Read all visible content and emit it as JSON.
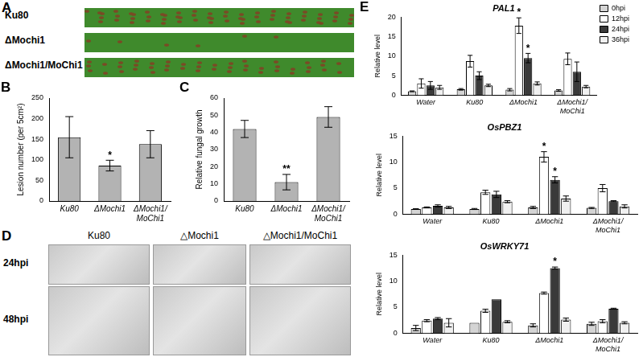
{
  "panel_A": {
    "panel": "A",
    "leaves": [
      "Ku80",
      "ΔMochi1",
      "ΔMochi1/MoChi1"
    ]
  },
  "chart_data": [
    {
      "panel": "B",
      "type": "bar",
      "y_label": "Lesion number (per 5cm²)",
      "categories": [
        "Ku80",
        "ΔMochi1",
        "ΔMochi1/MoChi1"
      ],
      "values": [
        155,
        86,
        138
      ],
      "errors": [
        50,
        13,
        33
      ],
      "significance": [
        null,
        "*",
        null
      ],
      "color": "#b3b3b3",
      "ylim": [
        0,
        250
      ],
      "yticks": [
        0,
        50,
        100,
        150,
        200,
        250
      ],
      "grid": false
    },
    {
      "panel": "C",
      "type": "bar",
      "y_label": "Relative fungal growth",
      "categories": [
        "Ku80",
        "ΔMochi1",
        "ΔMochi1/MoChi1"
      ],
      "values": [
        42,
        11,
        49
      ],
      "errors": [
        5,
        4.5,
        6
      ],
      "significance": [
        null,
        "**",
        null
      ],
      "color": "#b3b3b3",
      "ylim": [
        0,
        60
      ],
      "yticks": [
        0,
        10,
        20,
        30,
        40,
        50,
        60
      ],
      "grid": false
    },
    {
      "panel": "E",
      "type": "bar",
      "title": "PAL1",
      "y_label": "Relative level",
      "categories": [
        "Water",
        "Ku80",
        "ΔMochi1",
        "ΔMochi1/MoChi1"
      ],
      "series": [
        {
          "name": "0hpi",
          "color": "#d4d4d4",
          "values": [
            1,
            1.5,
            1.4,
            1.2
          ],
          "errors": [
            0.1,
            0.2,
            0.3,
            0.2
          ],
          "significance": [
            null,
            null,
            null,
            null
          ]
        },
        {
          "name": "12hpi",
          "color": "#ffffff",
          "values": [
            3,
            8.7,
            17.8,
            9.3
          ],
          "errors": [
            1.2,
            1.5,
            2,
            1.5
          ],
          "significance": [
            null,
            null,
            "*",
            null
          ]
        },
        {
          "name": "24hpi",
          "color": "#3a3a3a",
          "values": [
            2.5,
            5,
            9.5,
            6
          ],
          "errors": [
            1,
            1,
            1.2,
            2.5
          ],
          "significance": [
            null,
            null,
            "*",
            null
          ]
        },
        {
          "name": "36hpi",
          "color": "#f0f0f0",
          "values": [
            2,
            2.5,
            3,
            2.2
          ],
          "errors": [
            0.5,
            0.3,
            0.4,
            0.3
          ],
          "significance": [
            null,
            null,
            null,
            null
          ]
        }
      ],
      "ylim": [
        0,
        20
      ],
      "yticks": [
        0,
        5,
        10,
        15,
        20
      ],
      "grid": false,
      "legend": "upper right"
    },
    {
      "type": "bar",
      "title": "OsPBZ1",
      "y_label": "Relative level",
      "categories": [
        "Water",
        "Ku80",
        "ΔMochi1",
        "ΔMochi1/MoChi1"
      ],
      "series": [
        {
          "name": "0hpi",
          "color": "#d4d4d4",
          "values": [
            1,
            1,
            1.3,
            1.2
          ],
          "errors": [
            0.05,
            0.1,
            0.2,
            0.1
          ],
          "significance": [
            null,
            null,
            null,
            null
          ]
        },
        {
          "name": "12hpi",
          "color": "#ffffff",
          "values": [
            1.3,
            4.2,
            11,
            5
          ],
          "errors": [
            0.1,
            0.4,
            1,
            0.7
          ],
          "significance": [
            null,
            null,
            "*",
            null
          ]
        },
        {
          "name": "24hpi",
          "color": "#3a3a3a",
          "values": [
            1.6,
            3.8,
            6.6,
            2.5
          ],
          "errors": [
            0.2,
            0.6,
            0.6,
            0.1
          ],
          "significance": [
            null,
            null,
            "*",
            null
          ]
        },
        {
          "name": "36hpi",
          "color": "#f0f0f0",
          "values": [
            1.3,
            2.4,
            3,
            1.5
          ],
          "errors": [
            0.2,
            0.2,
            0.5,
            0.3
          ],
          "significance": [
            null,
            null,
            null,
            null
          ]
        }
      ],
      "ylim": [
        0,
        15
      ],
      "yticks": [
        0,
        5,
        10,
        15
      ],
      "grid": false
    },
    {
      "type": "bar",
      "title": "OsWRKY71",
      "y_label": "Relative level",
      "categories": [
        "Water",
        "Ku80",
        "ΔMochi1",
        "ΔMochi1/MoChi1"
      ],
      "series": [
        {
          "name": "0hpi",
          "color": "#d4d4d4",
          "values": [
            1,
            2,
            1.5,
            1.8
          ],
          "errors": [
            0.5,
            0,
            0.3,
            0.3
          ],
          "significance": [
            null,
            null,
            null,
            null
          ]
        },
        {
          "name": "12hpi",
          "color": "#ffffff",
          "values": [
            2.4,
            4.3,
            7.7,
            2.3
          ],
          "errors": [
            0.2,
            0.3,
            0.2,
            0.3
          ],
          "significance": [
            null,
            null,
            null,
            null
          ]
        },
        {
          "name": "24hpi",
          "color": "#3a3a3a",
          "values": [
            2.8,
            6.5,
            12.5,
            4.7
          ],
          "errors": [
            0.2,
            0,
            0.2,
            0.1
          ],
          "significance": [
            null,
            null,
            "*",
            null
          ]
        },
        {
          "name": "36hpi",
          "color": "#f0f0f0",
          "values": [
            2,
            2.2,
            2.6,
            2
          ],
          "errors": [
            0.8,
            0.2,
            0.3,
            0.2
          ],
          "significance": [
            null,
            null,
            null,
            null
          ]
        }
      ],
      "ylim": [
        0,
        15
      ],
      "yticks": [
        0,
        5,
        10,
        15
      ],
      "grid": false
    }
  ],
  "panel_D": {
    "panel": "D",
    "columns": [
      "Ku80",
      "△Mochi1",
      "△Mochi1/MoChi1"
    ],
    "rows": [
      "24hpi",
      "48hpi"
    ]
  }
}
